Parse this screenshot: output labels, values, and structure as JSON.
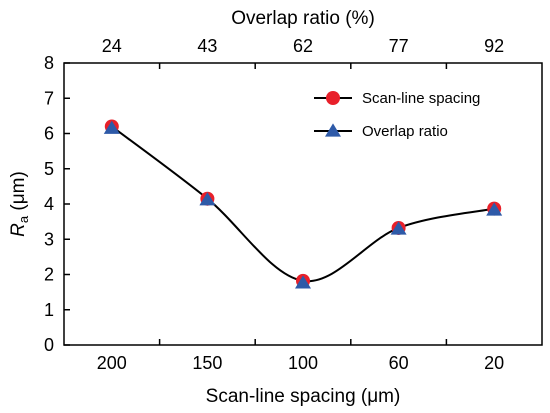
{
  "chart_data": {
    "type": "line",
    "xlabel": "Scan-line spacing (μm)",
    "x2label": "Overlap ratio (%)",
    "ylabel_main": "R",
    "ylabel_sub": "a",
    "ylabel_unit": " (μm)",
    "categories": [
      "200",
      "150",
      "100",
      "60",
      "20"
    ],
    "top_categories": [
      "24",
      "43",
      "62",
      "77",
      "92"
    ],
    "ylim": [
      0,
      8
    ],
    "yticks": [
      0,
      1,
      2,
      3,
      4,
      5,
      6,
      7,
      8
    ],
    "legend_position": "top-right",
    "series": [
      {
        "name": "Scan-line spacing",
        "marker": "circle",
        "color": "#e8202a",
        "values": [
          6.2,
          4.15,
          1.82,
          3.32,
          3.87
        ]
      },
      {
        "name": "Overlap ratio",
        "marker": "triangle",
        "color": "#2e5aa8",
        "values": [
          6.15,
          4.12,
          1.76,
          3.29,
          3.83
        ]
      }
    ],
    "line_color": "#000000",
    "grid": false
  }
}
